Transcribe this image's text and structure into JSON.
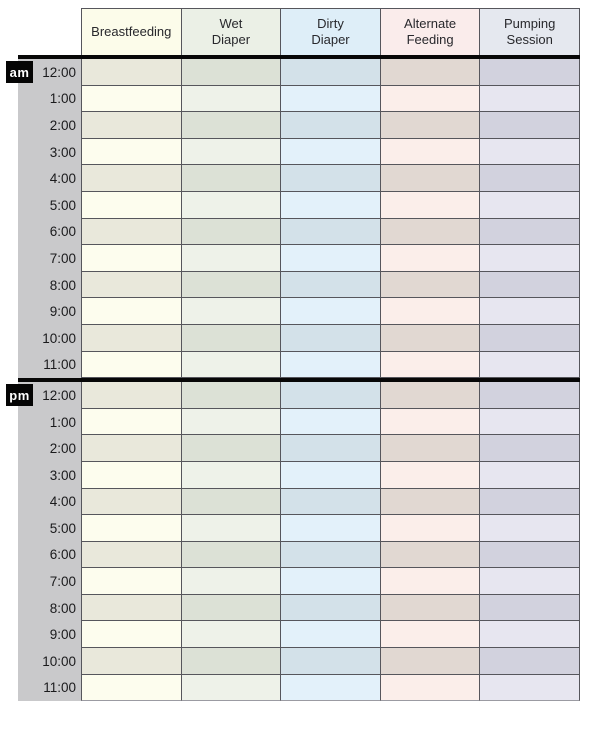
{
  "colors": {
    "gutter": "#c9c9cb",
    "border": "#56565c",
    "bottom_edge": "#9b9ba2",
    "divider_bar": "#070707",
    "badge_bg": "#050505",
    "badge_text": "#ffffff"
  },
  "table": {
    "columns": [
      {
        "id": "breastfeeding",
        "label": "Breastfeeding",
        "header_bg": "#fcfcea",
        "row_light": "#fdfdee",
        "row_dark": "#e9e8db"
      },
      {
        "id": "wet-diaper",
        "label": "Wet\nDiaper",
        "header_bg": "#ebf0e6",
        "row_light": "#eef2e9",
        "row_dark": "#dce1d6"
      },
      {
        "id": "dirty-diaper",
        "label": "Dirty\nDiaper",
        "header_bg": "#deeef8",
        "row_light": "#e3f1fa",
        "row_dark": "#d3e1e9"
      },
      {
        "id": "alternate-feeding",
        "label": "Alternate\nFeeding",
        "header_bg": "#faeceb",
        "row_light": "#fbeeea",
        "row_dark": "#e1d8d2"
      },
      {
        "id": "pumping-session",
        "label": "Pumping\nSession",
        "header_bg": "#e5e8ef",
        "row_light": "#e7e6f0",
        "row_dark": "#d2d2de"
      }
    ],
    "sections": [
      {
        "badge": "am",
        "times": [
          "12:00",
          "1:00",
          "2:00",
          "3:00",
          "4:00",
          "5:00",
          "6:00",
          "7:00",
          "8:00",
          "9:00",
          "10:00",
          "11:00"
        ]
      },
      {
        "badge": "pm",
        "times": [
          "12:00",
          "1:00",
          "2:00",
          "3:00",
          "4:00",
          "5:00",
          "6:00",
          "7:00",
          "8:00",
          "9:00",
          "10:00",
          "11:00"
        ]
      }
    ]
  }
}
